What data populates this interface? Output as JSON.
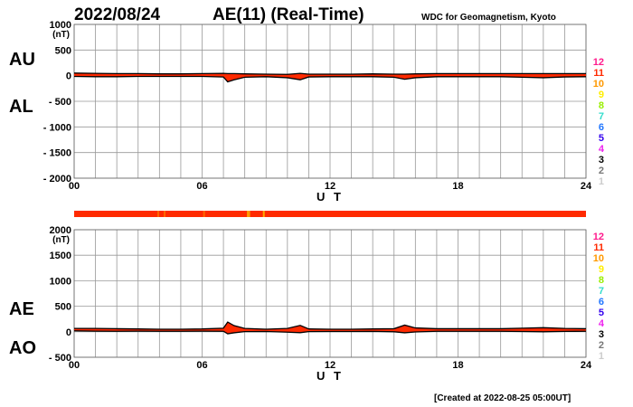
{
  "header": {
    "date": "2022/08/24",
    "title": "AE(11) (Real-Time)",
    "source": "WDC for Geomagnetism, Kyoto"
  },
  "footer": {
    "created": "[Created at 2022-08-25 05:00UT]"
  },
  "legend": {
    "labels": [
      "12",
      "11",
      "10",
      "9",
      "8",
      "7",
      "6",
      "5",
      "4",
      "3",
      "2",
      "1"
    ],
    "colors": [
      "#ff1a8c",
      "#ff2a00",
      "#ff9900",
      "#ffee00",
      "#99ee00",
      "#33ddcc",
      "#2277ff",
      "#3300ee",
      "#ee22ee",
      "#000000",
      "#777777",
      "#cccccc"
    ]
  },
  "chart_data": [
    {
      "type": "area",
      "title": "AU / AL",
      "ylabel_unit": "(nT)",
      "labels_upper": "AU",
      "labels_lower": "AL",
      "xlabel": "U T",
      "xlim": [
        0,
        24
      ],
      "ylim": [
        -2000,
        1000
      ],
      "xticks": [
        "00",
        "06",
        "12",
        "18",
        "24"
      ],
      "yticks": [
        "1000",
        "500",
        "0",
        "- 500",
        "- 1000",
        "- 1500",
        "- 2000"
      ],
      "ytick_values": [
        1000,
        500,
        0,
        -500,
        -1000,
        -1500,
        -2000
      ],
      "grid": true,
      "x": [
        0,
        1,
        2,
        3,
        4,
        5,
        6,
        7,
        7.2,
        7.5,
        8,
        9,
        10,
        10.6,
        11,
        12,
        13,
        14,
        15,
        15.5,
        16,
        17,
        18,
        19,
        20,
        21,
        22,
        23,
        24
      ],
      "series": [
        {
          "name": "AU",
          "values": [
            50,
            45,
            40,
            40,
            35,
            35,
            40,
            45,
            40,
            40,
            35,
            30,
            25,
            45,
            30,
            30,
            30,
            35,
            30,
            30,
            35,
            40,
            40,
            40,
            40,
            40,
            40,
            40,
            40
          ]
        },
        {
          "name": "AL",
          "values": [
            -15,
            -20,
            -20,
            -15,
            -15,
            -15,
            -15,
            -25,
            -120,
            -80,
            -30,
            -20,
            -40,
            -80,
            -25,
            -20,
            -20,
            -20,
            -30,
            -70,
            -40,
            -20,
            -20,
            -20,
            -20,
            -30,
            -40,
            -25,
            -20
          ]
        }
      ]
    },
    {
      "type": "area",
      "title": "AE / AO",
      "ylabel_unit": "(nT)",
      "labels_upper": "AE",
      "labels_lower": "AO",
      "xlabel": "U T",
      "xlim": [
        0,
        24
      ],
      "ylim": [
        -500,
        2000
      ],
      "xticks": [
        "00",
        "06",
        "12",
        "18",
        "24"
      ],
      "yticks": [
        "2000",
        "1500",
        "1000",
        "500",
        "0",
        "- 500"
      ],
      "ytick_values": [
        2000,
        1500,
        1000,
        500,
        0,
        -500
      ],
      "grid": true,
      "x": [
        0,
        1,
        2,
        3,
        4,
        5,
        6,
        7,
        7.2,
        7.5,
        8,
        9,
        10,
        10.6,
        11,
        12,
        13,
        14,
        15,
        15.5,
        16,
        17,
        18,
        19,
        20,
        21,
        22,
        23,
        24
      ],
      "series": [
        {
          "name": "AE",
          "values": [
            65,
            65,
            60,
            55,
            50,
            50,
            55,
            70,
            190,
            120,
            65,
            50,
            65,
            125,
            55,
            50,
            50,
            55,
            60,
            130,
            75,
            60,
            60,
            60,
            60,
            70,
            80,
            65,
            60
          ]
        },
        {
          "name": "AO",
          "values": [
            18,
            12,
            10,
            12,
            10,
            10,
            12,
            10,
            -40,
            -20,
            3,
            5,
            -8,
            -18,
            3,
            5,
            5,
            8,
            0,
            -20,
            -3,
            10,
            10,
            10,
            10,
            5,
            0,
            8,
            10
          ]
        }
      ]
    }
  ]
}
